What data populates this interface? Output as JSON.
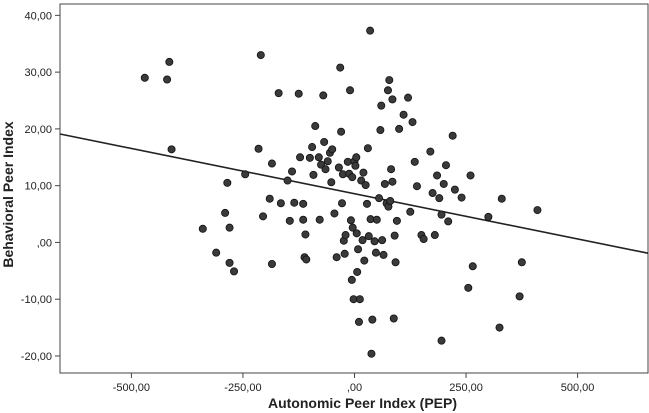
{
  "chart_data": {
    "type": "scatter",
    "title": "",
    "xlabel": "Autonomic Peer Index (PEP)",
    "ylabel": "Behavioral Peer Index",
    "xlim": [
      -660,
      660
    ],
    "ylim": [
      -23,
      42
    ],
    "xticks": [
      -500,
      -250,
      0,
      250,
      500
    ],
    "xtick_labels": [
      "-500,00",
      "-250,00",
      ",00",
      "250,00",
      "500,00"
    ],
    "yticks": [
      -20,
      -10,
      0,
      10,
      20,
      30,
      40
    ],
    "ytick_labels": [
      "-20,00",
      "-10,00",
      ",00",
      "10,00",
      "20,00",
      "30,00",
      "40,00"
    ],
    "grid": false,
    "colors": {
      "marker_fill": "#3a3a3a",
      "marker_stroke": "#111111",
      "line": "#222222",
      "frame": "#444444"
    },
    "regression_line": {
      "x": [
        -660,
        660
      ],
      "y": [
        19.1,
        -1.9
      ]
    },
    "points": [
      {
        "x": -470,
        "y": 29.0
      },
      {
        "x": -420,
        "y": 28.7
      },
      {
        "x": -415,
        "y": 31.8
      },
      {
        "x": -410,
        "y": 16.4
      },
      {
        "x": -340,
        "y": 2.4
      },
      {
        "x": -310,
        "y": -1.8
      },
      {
        "x": -290,
        "y": 5.2
      },
      {
        "x": -285,
        "y": 10.5
      },
      {
        "x": -280,
        "y": 2.6
      },
      {
        "x": -280,
        "y": -3.6
      },
      {
        "x": -270,
        "y": -5.1
      },
      {
        "x": -245,
        "y": 12.0
      },
      {
        "x": -215,
        "y": 16.5
      },
      {
        "x": -210,
        "y": 33.0
      },
      {
        "x": -205,
        "y": 4.6
      },
      {
        "x": -190,
        "y": 7.7
      },
      {
        "x": -185,
        "y": 13.9
      },
      {
        "x": -185,
        "y": -3.8
      },
      {
        "x": -170,
        "y": 26.3
      },
      {
        "x": -165,
        "y": 6.9
      },
      {
        "x": -150,
        "y": 10.9
      },
      {
        "x": -145,
        "y": 3.8
      },
      {
        "x": -140,
        "y": 12.5
      },
      {
        "x": -135,
        "y": 7.0
      },
      {
        "x": -125,
        "y": 26.2
      },
      {
        "x": -122,
        "y": 15.0
      },
      {
        "x": -115,
        "y": 6.8
      },
      {
        "x": -115,
        "y": 4.0
      },
      {
        "x": -112,
        "y": -2.6
      },
      {
        "x": -110,
        "y": 1.4
      },
      {
        "x": -108,
        "y": -3.0
      },
      {
        "x": -100,
        "y": 14.9
      },
      {
        "x": -95,
        "y": 16.8
      },
      {
        "x": -92,
        "y": 11.9
      },
      {
        "x": -88,
        "y": 20.5
      },
      {
        "x": -80,
        "y": 15.0
      },
      {
        "x": -78,
        "y": 4.0
      },
      {
        "x": -75,
        "y": 13.7
      },
      {
        "x": -70,
        "y": 25.9
      },
      {
        "x": -68,
        "y": 17.7
      },
      {
        "x": -65,
        "y": 12.9
      },
      {
        "x": -60,
        "y": 14.3
      },
      {
        "x": -55,
        "y": 15.8
      },
      {
        "x": -52,
        "y": 10.6
      },
      {
        "x": -50,
        "y": 16.4
      },
      {
        "x": -45,
        "y": 5.1
      },
      {
        "x": -40,
        "y": -2.6
      },
      {
        "x": -35,
        "y": 13.2
      },
      {
        "x": -32,
        "y": 30.8
      },
      {
        "x": -30,
        "y": 19.5
      },
      {
        "x": -28,
        "y": 6.9
      },
      {
        "x": -26,
        "y": 12.0
      },
      {
        "x": -24,
        "y": 0.3
      },
      {
        "x": -22,
        "y": -2.0
      },
      {
        "x": -20,
        "y": 1.3
      },
      {
        "x": -15,
        "y": 14.2
      },
      {
        "x": -12,
        "y": 12.1
      },
      {
        "x": -10,
        "y": 26.8
      },
      {
        "x": -8,
        "y": 3.9
      },
      {
        "x": -6,
        "y": -6.6
      },
      {
        "x": -5,
        "y": 11.5
      },
      {
        "x": -4,
        "y": 2.6
      },
      {
        "x": -2,
        "y": -10.0
      },
      {
        "x": 0,
        "y": 14.3
      },
      {
        "x": 2,
        "y": 13.5
      },
      {
        "x": 4,
        "y": 15.0
      },
      {
        "x": 5,
        "y": 1.6
      },
      {
        "x": 6,
        "y": -5.2
      },
      {
        "x": 8,
        "y": -1.2
      },
      {
        "x": 10,
        "y": -14.0
      },
      {
        "x": 12,
        "y": -10.0
      },
      {
        "x": 15,
        "y": 10.9
      },
      {
        "x": 18,
        "y": 0.4
      },
      {
        "x": 20,
        "y": 12.3
      },
      {
        "x": 22,
        "y": -3.2
      },
      {
        "x": 25,
        "y": 10.1
      },
      {
        "x": 28,
        "y": 6.8
      },
      {
        "x": 30,
        "y": 16.6
      },
      {
        "x": 32,
        "y": 1.1
      },
      {
        "x": 35,
        "y": 37.3
      },
      {
        "x": 36,
        "y": 4.1
      },
      {
        "x": 38,
        "y": -19.6
      },
      {
        "x": 40,
        "y": -13.6
      },
      {
        "x": 45,
        "y": 0.2
      },
      {
        "x": 48,
        "y": -1.8
      },
      {
        "x": 50,
        "y": 4.0
      },
      {
        "x": 55,
        "y": 7.8
      },
      {
        "x": 58,
        "y": 19.8
      },
      {
        "x": 60,
        "y": 24.1
      },
      {
        "x": 62,
        "y": 0.4
      },
      {
        "x": 65,
        "y": -2.2
      },
      {
        "x": 68,
        "y": 10.3
      },
      {
        "x": 72,
        "y": 6.9
      },
      {
        "x": 75,
        "y": 26.8
      },
      {
        "x": 76,
        "y": 6.3
      },
      {
        "x": 78,
        "y": 28.6
      },
      {
        "x": 80,
        "y": 7.3
      },
      {
        "x": 82,
        "y": 12.9
      },
      {
        "x": 85,
        "y": 25.2
      },
      {
        "x": 85,
        "y": 10.7
      },
      {
        "x": 88,
        "y": -13.4
      },
      {
        "x": 90,
        "y": 1.2
      },
      {
        "x": 92,
        "y": -3.5
      },
      {
        "x": 95,
        "y": 3.8
      },
      {
        "x": 100,
        "y": 20.0
      },
      {
        "x": 110,
        "y": 22.5
      },
      {
        "x": 120,
        "y": 25.5
      },
      {
        "x": 125,
        "y": 5.4
      },
      {
        "x": 130,
        "y": 21.2
      },
      {
        "x": 135,
        "y": 14.2
      },
      {
        "x": 140,
        "y": 9.9
      },
      {
        "x": 150,
        "y": 1.3
      },
      {
        "x": 155,
        "y": 0.6
      },
      {
        "x": 170,
        "y": 16.0
      },
      {
        "x": 175,
        "y": 8.7
      },
      {
        "x": 180,
        "y": 1.3
      },
      {
        "x": 185,
        "y": 11.8
      },
      {
        "x": 190,
        "y": 7.8
      },
      {
        "x": 195,
        "y": 4.9
      },
      {
        "x": 195,
        "y": -17.3
      },
      {
        "x": 200,
        "y": 10.3
      },
      {
        "x": 205,
        "y": 13.6
      },
      {
        "x": 210,
        "y": 3.7
      },
      {
        "x": 220,
        "y": 18.8
      },
      {
        "x": 225,
        "y": 9.3
      },
      {
        "x": 240,
        "y": 7.9
      },
      {
        "x": 255,
        "y": -8.0
      },
      {
        "x": 260,
        "y": 11.8
      },
      {
        "x": 265,
        "y": -4.2
      },
      {
        "x": 300,
        "y": 4.5
      },
      {
        "x": 325,
        "y": -15.0
      },
      {
        "x": 330,
        "y": 7.7
      },
      {
        "x": 370,
        "y": -9.5
      },
      {
        "x": 375,
        "y": -3.5
      },
      {
        "x": 410,
        "y": 5.7
      }
    ]
  }
}
